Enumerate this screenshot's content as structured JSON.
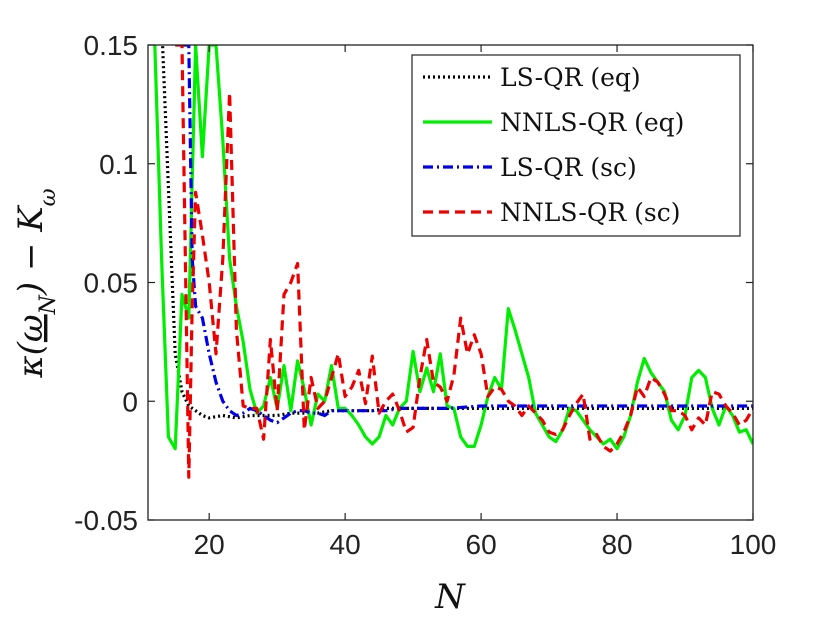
{
  "chart_data": {
    "type": "line",
    "title": "",
    "xlabel": "N",
    "ylabel": "κ(ω_N) − K_ω",
    "xlim": [
      11,
      100
    ],
    "ylim": [
      -0.05,
      0.15
    ],
    "xticks": [
      20,
      40,
      60,
      80,
      100
    ],
    "xtick_labels": [
      "20",
      "40",
      "60",
      "80",
      "100"
    ],
    "yticks": [
      -0.05,
      0,
      0.05,
      0.1,
      0.15
    ],
    "ytick_labels": [
      "-0.05",
      "0",
      "0.05",
      "0.1",
      "0.15"
    ],
    "legend_position": "top-right",
    "series": [
      {
        "name": "LS-QR (eq)",
        "color": "#000000",
        "dash": "2,3",
        "x": [
          13,
          14,
          15,
          16,
          17,
          18,
          19,
          20,
          22,
          24,
          26,
          28,
          30,
          32,
          34,
          36,
          38,
          40,
          42,
          44,
          46,
          48,
          50,
          55,
          60,
          65,
          70,
          75,
          80,
          85,
          90,
          95,
          100
        ],
        "y": [
          0.16,
          0.09,
          0.02,
          0.004,
          -0.002,
          -0.004,
          -0.006,
          -0.007,
          -0.006,
          -0.007,
          -0.006,
          -0.006,
          -0.006,
          -0.005,
          -0.005,
          -0.005,
          -0.004,
          -0.004,
          -0.004,
          -0.004,
          -0.003,
          -0.003,
          -0.003,
          -0.003,
          -0.003,
          -0.003,
          -0.003,
          -0.003,
          -0.003,
          -0.003,
          -0.003,
          -0.003,
          -0.003
        ]
      },
      {
        "name": "NNLS-QR (eq)",
        "color": "#00ee00",
        "dash": "",
        "x": [
          12,
          13,
          14,
          15,
          16,
          17,
          18,
          19,
          20,
          21,
          22,
          23,
          24,
          25,
          26,
          27,
          28,
          29,
          30,
          31,
          32,
          33,
          34,
          35,
          36,
          37,
          38,
          39,
          40,
          41,
          42,
          43,
          44,
          45,
          46,
          47,
          48,
          49,
          50,
          51,
          52,
          53,
          54,
          55,
          56,
          57,
          58,
          59,
          60,
          61,
          62,
          63,
          64,
          65,
          66,
          67,
          68,
          69,
          70,
          71,
          72,
          73,
          74,
          75,
          76,
          77,
          78,
          79,
          80,
          81,
          82,
          83,
          84,
          85,
          86,
          87,
          88,
          89,
          90,
          91,
          92,
          93,
          94,
          95,
          96,
          97,
          98,
          99,
          100
        ],
        "y": [
          0.15,
          0.06,
          -0.015,
          -0.02,
          0.045,
          0.035,
          0.15,
          0.103,
          0.15,
          0.15,
          0.11,
          0.06,
          0.04,
          0.025,
          0.005,
          -0.005,
          -0.002,
          0.01,
          -0.003,
          0.015,
          -0.004,
          0.017,
          0.005,
          -0.01,
          0.003,
          0.0,
          0.015,
          -0.003,
          -0.003,
          -0.006,
          -0.01,
          -0.015,
          -0.018,
          -0.015,
          -0.006,
          -0.01,
          -0.003,
          0.0,
          0.021,
          0.004,
          0.014,
          0.004,
          0.02,
          -0.002,
          -0.003,
          -0.015,
          -0.019,
          -0.019,
          -0.01,
          0.002,
          0.01,
          0.005,
          0.039,
          0.03,
          0.02,
          0.01,
          -0.005,
          -0.01,
          -0.015,
          -0.017,
          -0.012,
          -0.003,
          -0.004,
          -0.008,
          -0.012,
          -0.015,
          -0.018,
          -0.016,
          -0.02,
          -0.015,
          -0.006,
          0.008,
          0.018,
          0.012,
          0.008,
          0.004,
          -0.008,
          -0.012,
          -0.006,
          0.01,
          0.013,
          0.01,
          -0.003,
          -0.01,
          -0.002,
          -0.006,
          -0.013,
          -0.012,
          -0.018
        ]
      },
      {
        "name": "LS-QR (sc)",
        "color": "#0000ee",
        "dash": "10,4,2,4",
        "x": [
          16,
          17,
          17.5,
          18,
          19,
          20,
          21,
          22,
          23,
          24,
          25,
          26,
          27,
          28,
          29,
          30,
          31,
          32,
          33,
          34,
          35,
          36,
          37,
          38,
          40,
          42,
          44,
          46,
          48,
          50,
          55,
          60,
          65,
          70,
          75,
          80,
          85,
          90,
          95,
          100
        ],
        "y": [
          0.15,
          0.15,
          0.06,
          0.04,
          0.035,
          0.02,
          0.008,
          0.0,
          -0.004,
          -0.006,
          -0.005,
          -0.003,
          -0.004,
          -0.006,
          -0.008,
          -0.009,
          -0.007,
          -0.005,
          -0.004,
          -0.004,
          -0.005,
          -0.005,
          -0.006,
          -0.004,
          -0.004,
          -0.004,
          -0.004,
          -0.004,
          -0.003,
          -0.003,
          -0.003,
          -0.002,
          -0.002,
          -0.002,
          -0.002,
          -0.002,
          -0.002,
          -0.002,
          -0.002,
          -0.002
        ]
      },
      {
        "name": "NNLS-QR (sc)",
        "color": "#ee0000",
        "dash": "10,6",
        "x": [
          15,
          16,
          17,
          17.5,
          18,
          19,
          20,
          21,
          22,
          23,
          24,
          25,
          26,
          27,
          28,
          29,
          30,
          31,
          32,
          33,
          34,
          35,
          36,
          37,
          38,
          39,
          40,
          41,
          42,
          43,
          44,
          45,
          46,
          47,
          48,
          49,
          50,
          51,
          52,
          53,
          54,
          55,
          56,
          57,
          58,
          59,
          60,
          61,
          62,
          63,
          64,
          65,
          66,
          67,
          68,
          69,
          70,
          71,
          72,
          73,
          74,
          75,
          76,
          77,
          78,
          79,
          80,
          81,
          82,
          83,
          84,
          85,
          86,
          87,
          88,
          89,
          90,
          91,
          92,
          93,
          94,
          95,
          96,
          97,
          98,
          99,
          100
        ],
        "y": [
          0.15,
          0.15,
          -0.032,
          0.04,
          0.088,
          0.07,
          0.05,
          0.02,
          0.06,
          0.13,
          0.03,
          -0.002,
          -0.003,
          -0.003,
          -0.016,
          0.026,
          -0.004,
          0.045,
          0.05,
          0.058,
          -0.012,
          0.01,
          -0.003,
          0.0,
          0.01,
          0.02,
          0.002,
          0.006,
          0.013,
          -0.001,
          0.019,
          -0.005,
          0.0,
          0.003,
          -0.004,
          -0.013,
          -0.011,
          0.01,
          0.026,
          0.008,
          0.006,
          0.0,
          0.011,
          0.035,
          0.02,
          0.028,
          0.02,
          0.002,
          0.006,
          0.005,
          0.0,
          -0.002,
          -0.006,
          -0.002,
          -0.005,
          -0.008,
          -0.013,
          -0.014,
          -0.012,
          -0.006,
          -0.001,
          0.003,
          -0.016,
          -0.014,
          -0.019,
          -0.021,
          -0.018,
          -0.013,
          -0.006,
          0.006,
          0.002,
          0.01,
          0.008,
          0.003,
          -0.004,
          -0.004,
          -0.006,
          -0.012,
          -0.007,
          -0.01,
          0.004,
          0.003,
          -0.002,
          -0.005,
          -0.01,
          -0.008,
          -0.003
        ]
      }
    ]
  }
}
